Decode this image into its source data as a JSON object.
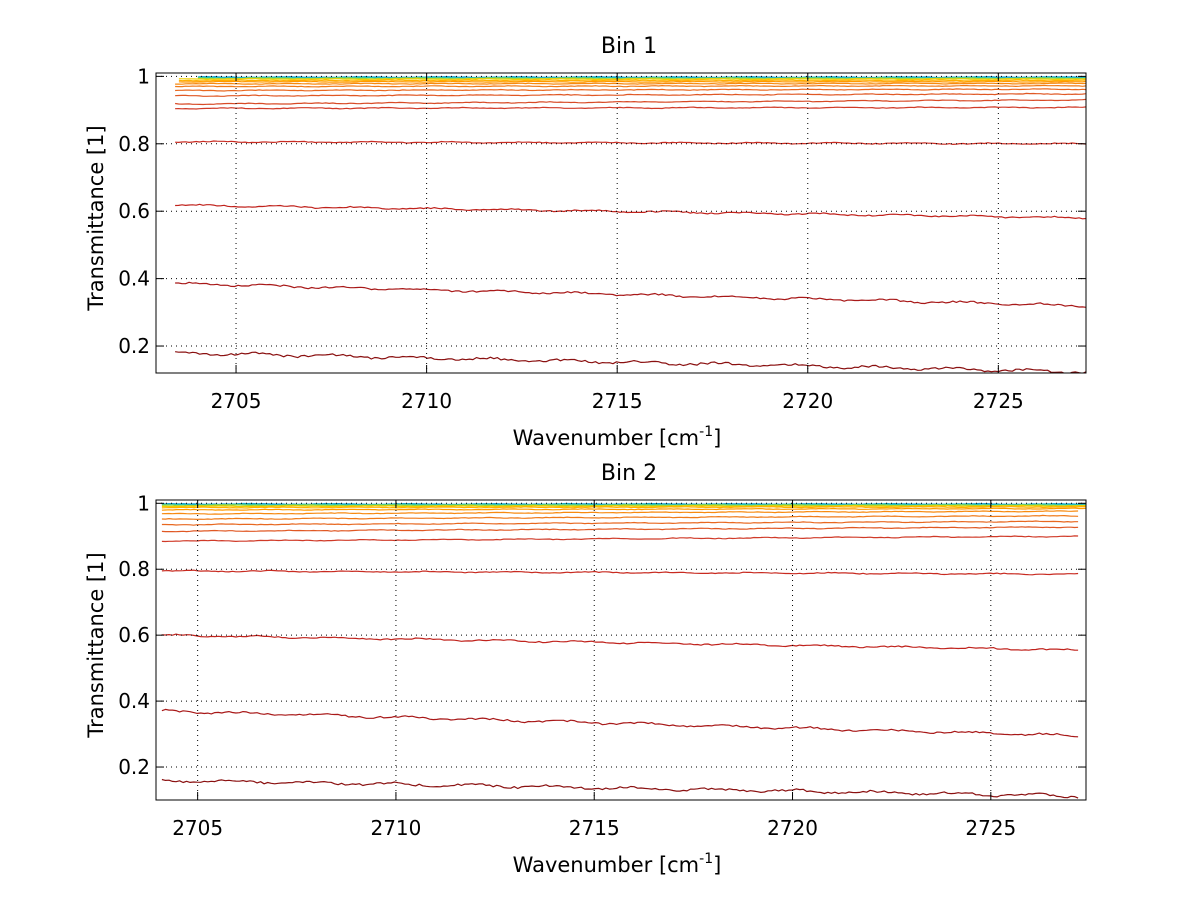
{
  "chart_data": [
    {
      "type": "line",
      "title": "Bin 1",
      "xlabel": "Wavenumber [cm",
      "xlabel_sup": "-1",
      "xlabel_suffix": "]",
      "ylabel": "Transmittance [1]",
      "xlim": [
        2702.9,
        2727.3
      ],
      "ylim": [
        0.12,
        1.01
      ],
      "xticks": [
        2705,
        2710,
        2715,
        2720,
        2725
      ],
      "yticks": [
        0.2,
        0.4,
        0.6,
        0.8,
        1
      ],
      "ytick_labels": [
        "0.2",
        "0.4",
        "0.6",
        "0.8",
        "1"
      ],
      "grid": true,
      "series": [
        {
          "color": "#1f9ed0",
          "x": [
            2704.0,
            2727.3
          ],
          "y": [
            0.998,
            0.998
          ]
        },
        {
          "color": "#26c4b0",
          "x": [
            2704.0,
            2727.3
          ],
          "y": [
            0.996,
            0.996
          ]
        },
        {
          "color": "#9bd23c",
          "x": [
            2704.0,
            2727.3
          ],
          "y": [
            0.994,
            0.994
          ]
        },
        {
          "color": "#f0d000",
          "x": [
            2703.5,
            2727.3
          ],
          "y": [
            0.992,
            0.992
          ]
        },
        {
          "color": "#ffb000",
          "x": [
            2703.5,
            2727.3
          ],
          "y": [
            0.988,
            0.988
          ]
        },
        {
          "color": "#ff9900",
          "x": [
            2703.5,
            2727.3
          ],
          "y": [
            0.984,
            0.984
          ]
        },
        {
          "color": "#f78a10",
          "x": [
            2703.4,
            2727.3
          ],
          "y": [
            0.978,
            0.979
          ]
        },
        {
          "color": "#ef7a18",
          "x": [
            2703.4,
            2727.3
          ],
          "y": [
            0.97,
            0.972
          ]
        },
        {
          "color": "#e86820",
          "x": [
            2703.4,
            2727.3
          ],
          "y": [
            0.958,
            0.962
          ]
        },
        {
          "color": "#e05824",
          "x": [
            2703.4,
            2727.3
          ],
          "y": [
            0.942,
            0.948
          ]
        },
        {
          "color": "#d84a26",
          "x": [
            2703.4,
            2727.3
          ],
          "y": [
            0.918,
            0.93
          ]
        },
        {
          "color": "#d03a28",
          "x": [
            2703.4,
            2727.3
          ],
          "y": [
            0.905,
            0.908
          ]
        },
        {
          "color": "#c82a20",
          "x": [
            2703.4,
            2727.3
          ],
          "y": [
            0.806,
            0.8
          ]
        },
        {
          "color": "#c0221c",
          "x": [
            2703.4,
            2727.3
          ],
          "y": [
            0.618,
            0.58
          ]
        },
        {
          "color": "#a81818",
          "x": [
            2703.4,
            2727.3
          ],
          "y": [
            0.385,
            0.32
          ]
        },
        {
          "color": "#8a1010",
          "x": [
            2703.4,
            2727.3
          ],
          "y": [
            0.18,
            0.123
          ]
        }
      ]
    },
    {
      "type": "line",
      "title": "Bin 2",
      "xlabel": "Wavenumber [cm",
      "xlabel_sup": "-1",
      "xlabel_suffix": "]",
      "ylabel": "Transmittance [1]",
      "xlim": [
        2703.95,
        2727.4
      ],
      "ylim": [
        0.1,
        1.01
      ],
      "xticks": [
        2705,
        2710,
        2715,
        2720,
        2725
      ],
      "yticks": [
        0.2,
        0.4,
        0.6,
        0.8,
        1
      ],
      "ytick_labels": [
        "0.2",
        "0.4",
        "0.6",
        "0.8",
        "1"
      ],
      "grid": true,
      "series": [
        {
          "color": "#1f9ed0",
          "x": [
            2704.1,
            2727.4
          ],
          "y": [
            0.998,
            0.998
          ]
        },
        {
          "color": "#26c4b0",
          "x": [
            2704.1,
            2727.4
          ],
          "y": [
            0.996,
            0.996
          ]
        },
        {
          "color": "#9bd23c",
          "x": [
            2704.1,
            2727.4
          ],
          "y": [
            0.994,
            0.994
          ]
        },
        {
          "color": "#f0d000",
          "x": [
            2704.1,
            2727.4
          ],
          "y": [
            0.991,
            0.992
          ]
        },
        {
          "color": "#ffb000",
          "x": [
            2704.1,
            2727.4
          ],
          "y": [
            0.987,
            0.989
          ]
        },
        {
          "color": "#ff9900",
          "x": [
            2704.1,
            2727.4
          ],
          "y": [
            0.98,
            0.984
          ]
        },
        {
          "color": "#f78a10",
          "x": [
            2704.1,
            2727.2
          ],
          "y": [
            0.968,
            0.976
          ]
        },
        {
          "color": "#ef7a18",
          "x": [
            2704.1,
            2727.2
          ],
          "y": [
            0.952,
            0.962
          ]
        },
        {
          "color": "#e86820",
          "x": [
            2704.1,
            2727.2
          ],
          "y": [
            0.935,
            0.945
          ]
        },
        {
          "color": "#e05824",
          "x": [
            2704.1,
            2727.2
          ],
          "y": [
            0.915,
            0.928
          ]
        },
        {
          "color": "#d03a28",
          "x": [
            2704.1,
            2727.2
          ],
          "y": [
            0.885,
            0.9
          ]
        },
        {
          "color": "#c82a20",
          "x": [
            2704.1,
            2727.2
          ],
          "y": [
            0.795,
            0.785
          ]
        },
        {
          "color": "#c0221c",
          "x": [
            2704.1,
            2727.2
          ],
          "y": [
            0.6,
            0.555
          ]
        },
        {
          "color": "#a81818",
          "x": [
            2704.1,
            2727.2
          ],
          "y": [
            0.37,
            0.295
          ]
        },
        {
          "color": "#8a1010",
          "x": [
            2704.1,
            2727.2
          ],
          "y": [
            0.16,
            0.112
          ]
        }
      ]
    }
  ]
}
